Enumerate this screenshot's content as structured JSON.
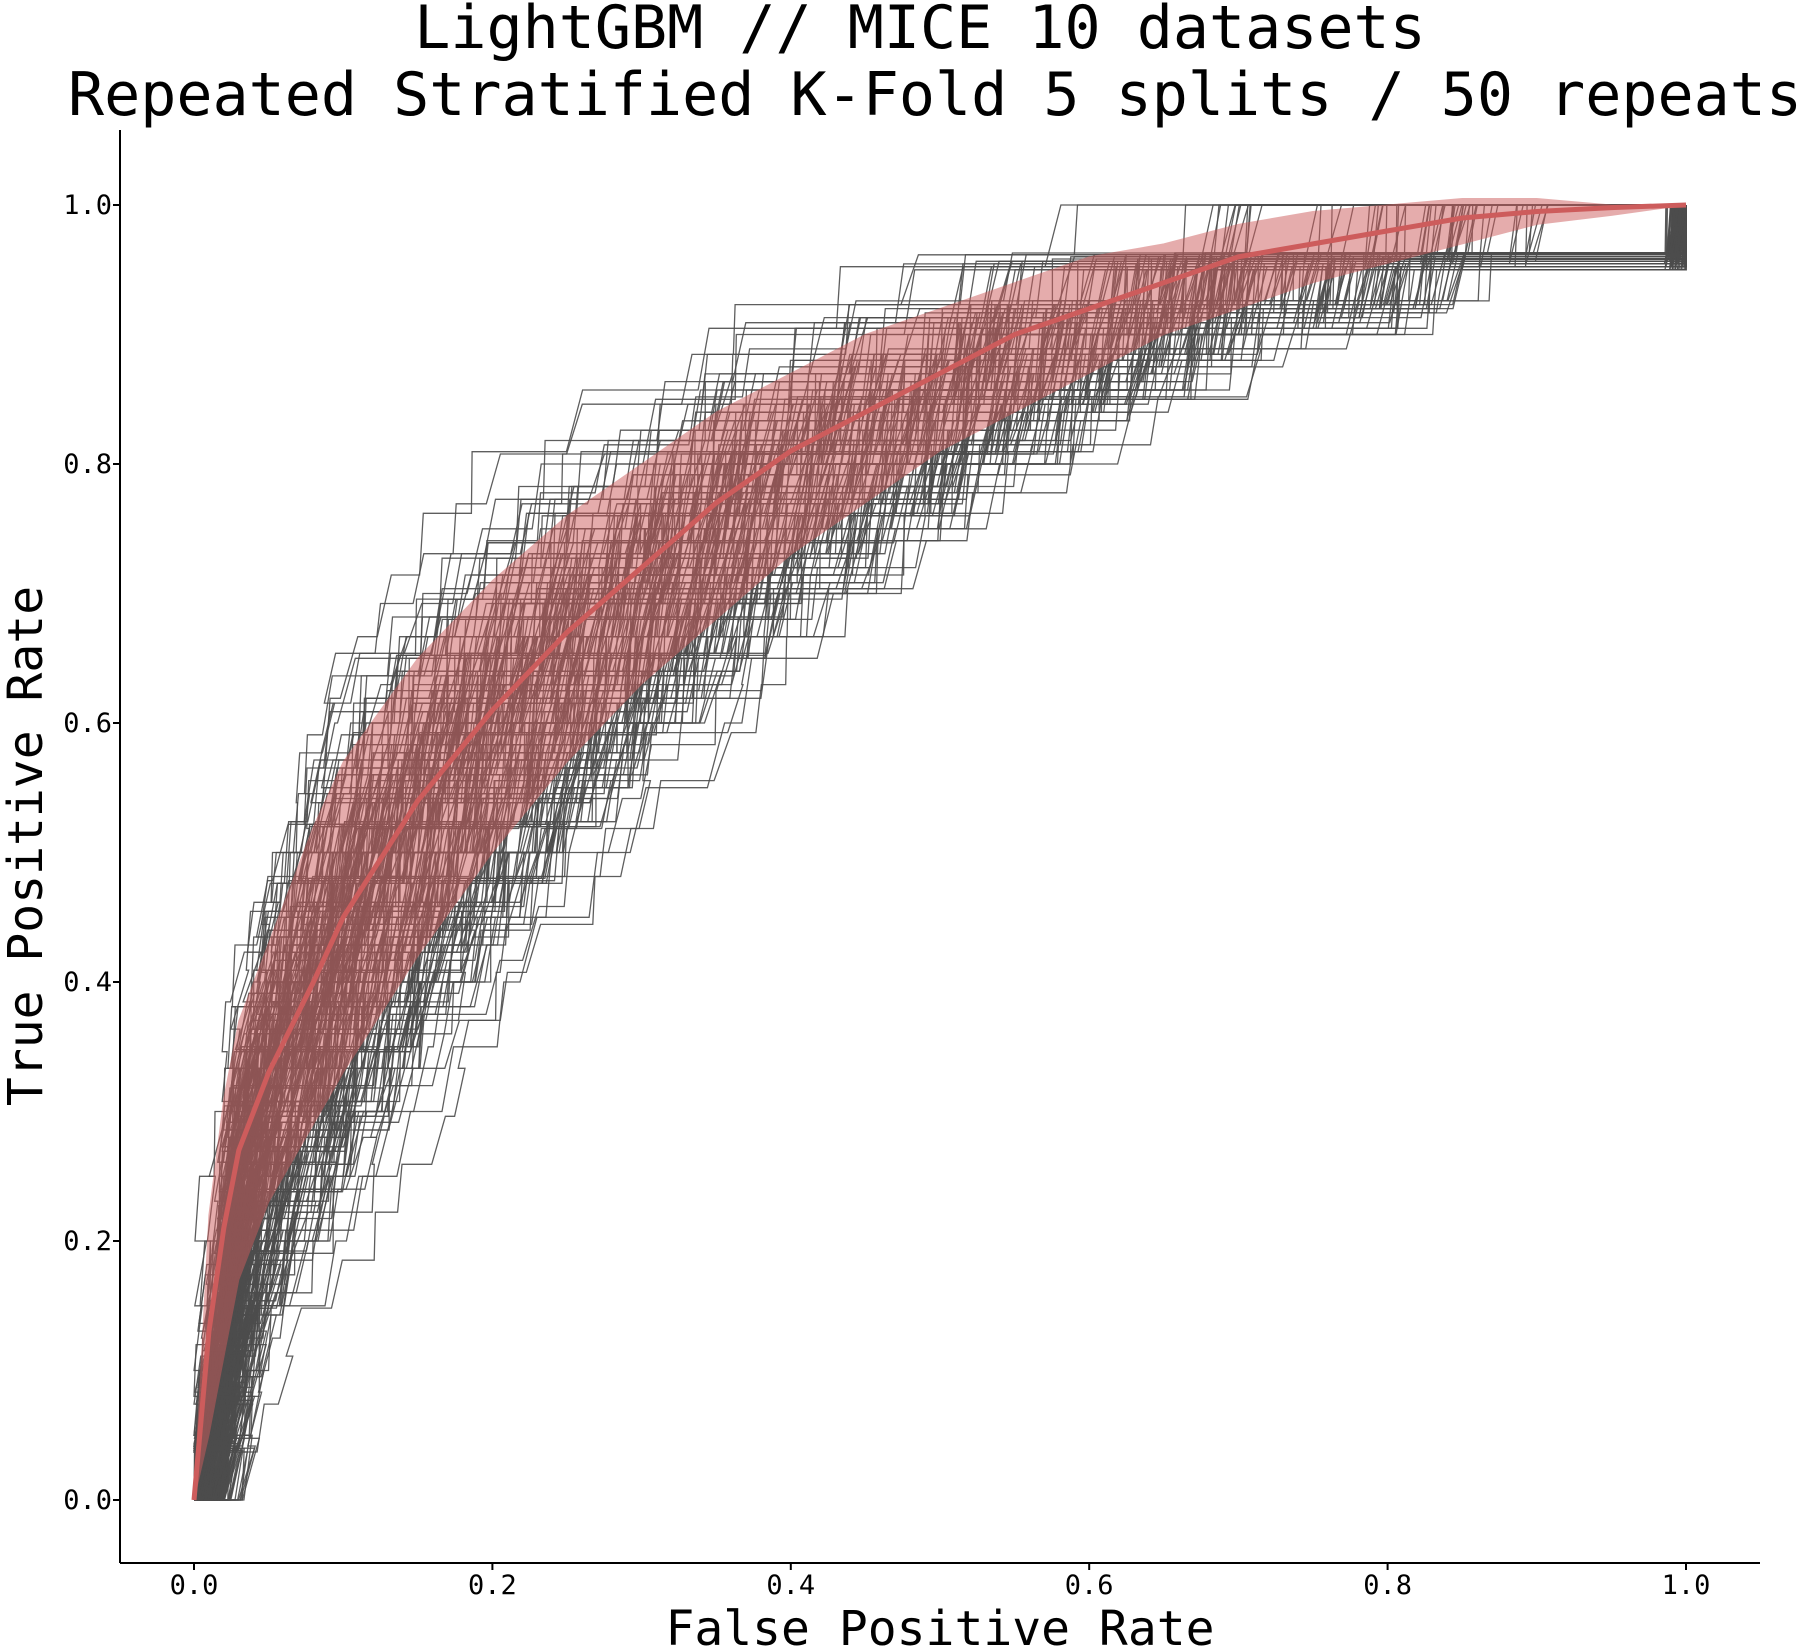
{
  "chart_data": {
    "type": "line",
    "title": [
      "LightGBM // MICE 10 datasets",
      "Repeated Stratified K-Fold 5 splits / 50 repeats"
    ],
    "xlabel": "False Positive Rate",
    "ylabel": "True Positive Rate",
    "xlim": [
      -0.05,
      1.05
    ],
    "ylim": [
      -0.05,
      1.06
    ],
    "xticks": [
      0.0,
      0.2,
      0.4,
      0.6,
      0.8,
      1.0
    ],
    "yticks": [
      0.0,
      0.2,
      0.4,
      0.6,
      0.8,
      1.0
    ],
    "xtick_labels": [
      "0.0",
      "0.2",
      "0.4",
      "0.6",
      "0.8",
      "1.0"
    ],
    "ytick_labels": [
      "0.0",
      "0.2",
      "0.4",
      "0.6",
      "0.8",
      "1.0"
    ],
    "grid": false,
    "mean_roc": {
      "color": "#cd5c5c",
      "x": [
        0.0,
        0.01,
        0.02,
        0.03,
        0.05,
        0.08,
        0.1,
        0.15,
        0.2,
        0.25,
        0.3,
        0.35,
        0.4,
        0.45,
        0.5,
        0.55,
        0.6,
        0.65,
        0.7,
        0.75,
        0.8,
        0.85,
        0.9,
        0.95,
        1.0
      ],
      "y": [
        0.0,
        0.13,
        0.21,
        0.27,
        0.33,
        0.4,
        0.45,
        0.54,
        0.61,
        0.67,
        0.72,
        0.77,
        0.81,
        0.84,
        0.87,
        0.9,
        0.92,
        0.94,
        0.96,
        0.97,
        0.98,
        0.99,
        0.995,
        0.998,
        1.0
      ]
    },
    "std_band": {
      "color": "#cd5c5c",
      "x": [
        0.0,
        0.01,
        0.02,
        0.03,
        0.05,
        0.08,
        0.1,
        0.15,
        0.2,
        0.25,
        0.3,
        0.35,
        0.4,
        0.45,
        0.5,
        0.55,
        0.6,
        0.65,
        0.7,
        0.75,
        0.8,
        0.85,
        0.9,
        0.95,
        1.0
      ],
      "upper": [
        0.0,
        0.22,
        0.31,
        0.37,
        0.43,
        0.52,
        0.57,
        0.65,
        0.71,
        0.76,
        0.8,
        0.84,
        0.87,
        0.9,
        0.92,
        0.94,
        0.96,
        0.97,
        0.985,
        0.995,
        1.0,
        1.005,
        1.005,
        1.0,
        1.0
      ],
      "lower": [
        0.0,
        0.05,
        0.11,
        0.17,
        0.23,
        0.29,
        0.33,
        0.42,
        0.5,
        0.57,
        0.63,
        0.68,
        0.73,
        0.77,
        0.81,
        0.84,
        0.87,
        0.9,
        0.92,
        0.94,
        0.955,
        0.97,
        0.985,
        0.992,
        1.0
      ]
    },
    "fold_curves": {
      "count": 250,
      "color": "#4d4d4d",
      "description_note": "individual fold ROC step curves"
    }
  }
}
